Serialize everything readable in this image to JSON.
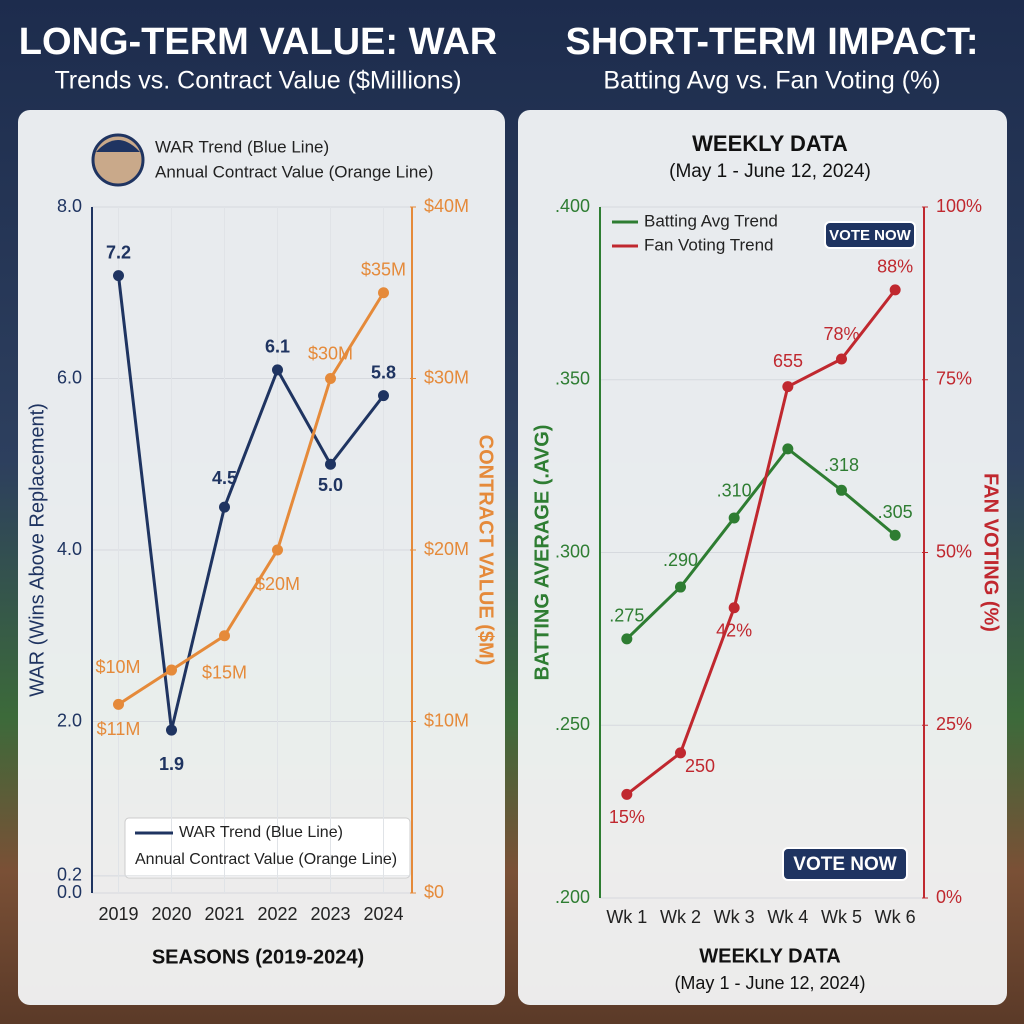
{
  "chart_data": [
    {
      "type": "line",
      "heading": "LONG-TERM VALUE: WAR",
      "heading_subtitle": "Trends vs. Contract Value ($Millions)",
      "y_label": "WAR (Wins Above Replacement)",
      "y2_label": "CONTRACT VALUE ($M)",
      "x_label": "SEASONS (2019-2024)",
      "categories": [
        "2019",
        "2020",
        "2021",
        "2022",
        "2023",
        "2024"
      ],
      "series": [
        {
          "name": "WAR Trend (Blue Line)",
          "color": "#1f3461",
          "values": [
            7.2,
            1.9,
            4.5,
            6.1,
            5.0,
            5.8
          ],
          "value_labels": [
            "7.2",
            "1.9",
            "4.5",
            "6.1",
            "5.0",
            "5.8"
          ]
        },
        {
          "name": "Annual Contract Value (Orange Line)",
          "color": "#e58a3a",
          "axis": "y2",
          "values": [
            11,
            13,
            15,
            20,
            30,
            35
          ],
          "value_labels": [
            "$11M",
            null,
            "$15M",
            "$20M",
            "$30M",
            "$35M"
          ]
        }
      ],
      "annotations": [
        "$10M"
      ],
      "ylim": [
        0,
        8
      ],
      "yticks": [
        {
          "value": 0,
          "label": "0.0"
        },
        0.2,
        {
          "value": 2,
          "label": "2.0"
        },
        {
          "value": 4,
          "label": "4.0"
        },
        {
          "value": 6,
          "label": "6.0"
        },
        {
          "value": 8,
          "label": "8.0"
        }
      ],
      "y2lim": [
        0,
        40
      ],
      "y2ticks": [
        {
          "value": 0,
          "label": "$0"
        },
        {
          "value": 10,
          "label": "$10M"
        },
        {
          "value": 20,
          "label": "$20M"
        },
        {
          "value": 30,
          "label": "$30M"
        },
        {
          "value": 40,
          "label": "$40M"
        }
      ],
      "grid": true,
      "legend": "top-left"
    },
    {
      "type": "line",
      "heading": "SHORT-TERM IMPACT:",
      "heading_subtitle": "Batting Avg vs. Fan Voting (%)",
      "title": "WEEKLY DATA",
      "subtitle": "(May 1 - June 12, 2024)",
      "y_label": "BATTING AVERAGE (.AVG)",
      "y2_label": "FAN VOTING (%)",
      "categories": [
        "Wk 1",
        "Wk 2",
        "Wk 3",
        "Wk 4",
        "Wk 5",
        "Wk 6"
      ],
      "series": [
        {
          "name": "Batting Avg Trend",
          "color": "#2e7d32",
          "values": [
            0.275,
            0.29,
            0.31,
            0.33,
            0.318,
            0.305
          ],
          "value_labels": [
            ".275",
            ".290",
            ".310",
            null,
            ".318",
            ".305"
          ]
        },
        {
          "name": "Fan Voting Trend",
          "color": "#c0282f",
          "axis": "y2",
          "values": [
            15,
            21,
            42,
            74,
            78,
            88
          ],
          "value_labels": [
            "15%",
            null,
            "42%",
            null,
            "78%",
            "88%"
          ]
        }
      ],
      "annotations": [
        "250",
        "655"
      ],
      "buttons": [
        "VOTE NOW",
        "VOTE NOW"
      ],
      "ylim": [
        0.2,
        0.4
      ],
      "yticks": [
        {
          "value": 0.2,
          "label": ".200"
        },
        {
          "value": 0.25,
          "label": ".250"
        },
        {
          "value": 0.3,
          "label": ".300"
        },
        {
          "value": 0.35,
          "label": ".350"
        },
        {
          "value": 0.4,
          "label": ".400"
        }
      ],
      "y2lim": [
        0,
        100
      ],
      "y2ticks": [
        {
          "value": 0,
          "label": "0%"
        },
        {
          "value": 25,
          "label": "25%"
        },
        {
          "value": 50,
          "label": "50%"
        },
        {
          "value": 75,
          "label": "75%"
        },
        {
          "value": 100,
          "label": "100%"
        }
      ],
      "grid": true,
      "legend": "top-left"
    }
  ]
}
